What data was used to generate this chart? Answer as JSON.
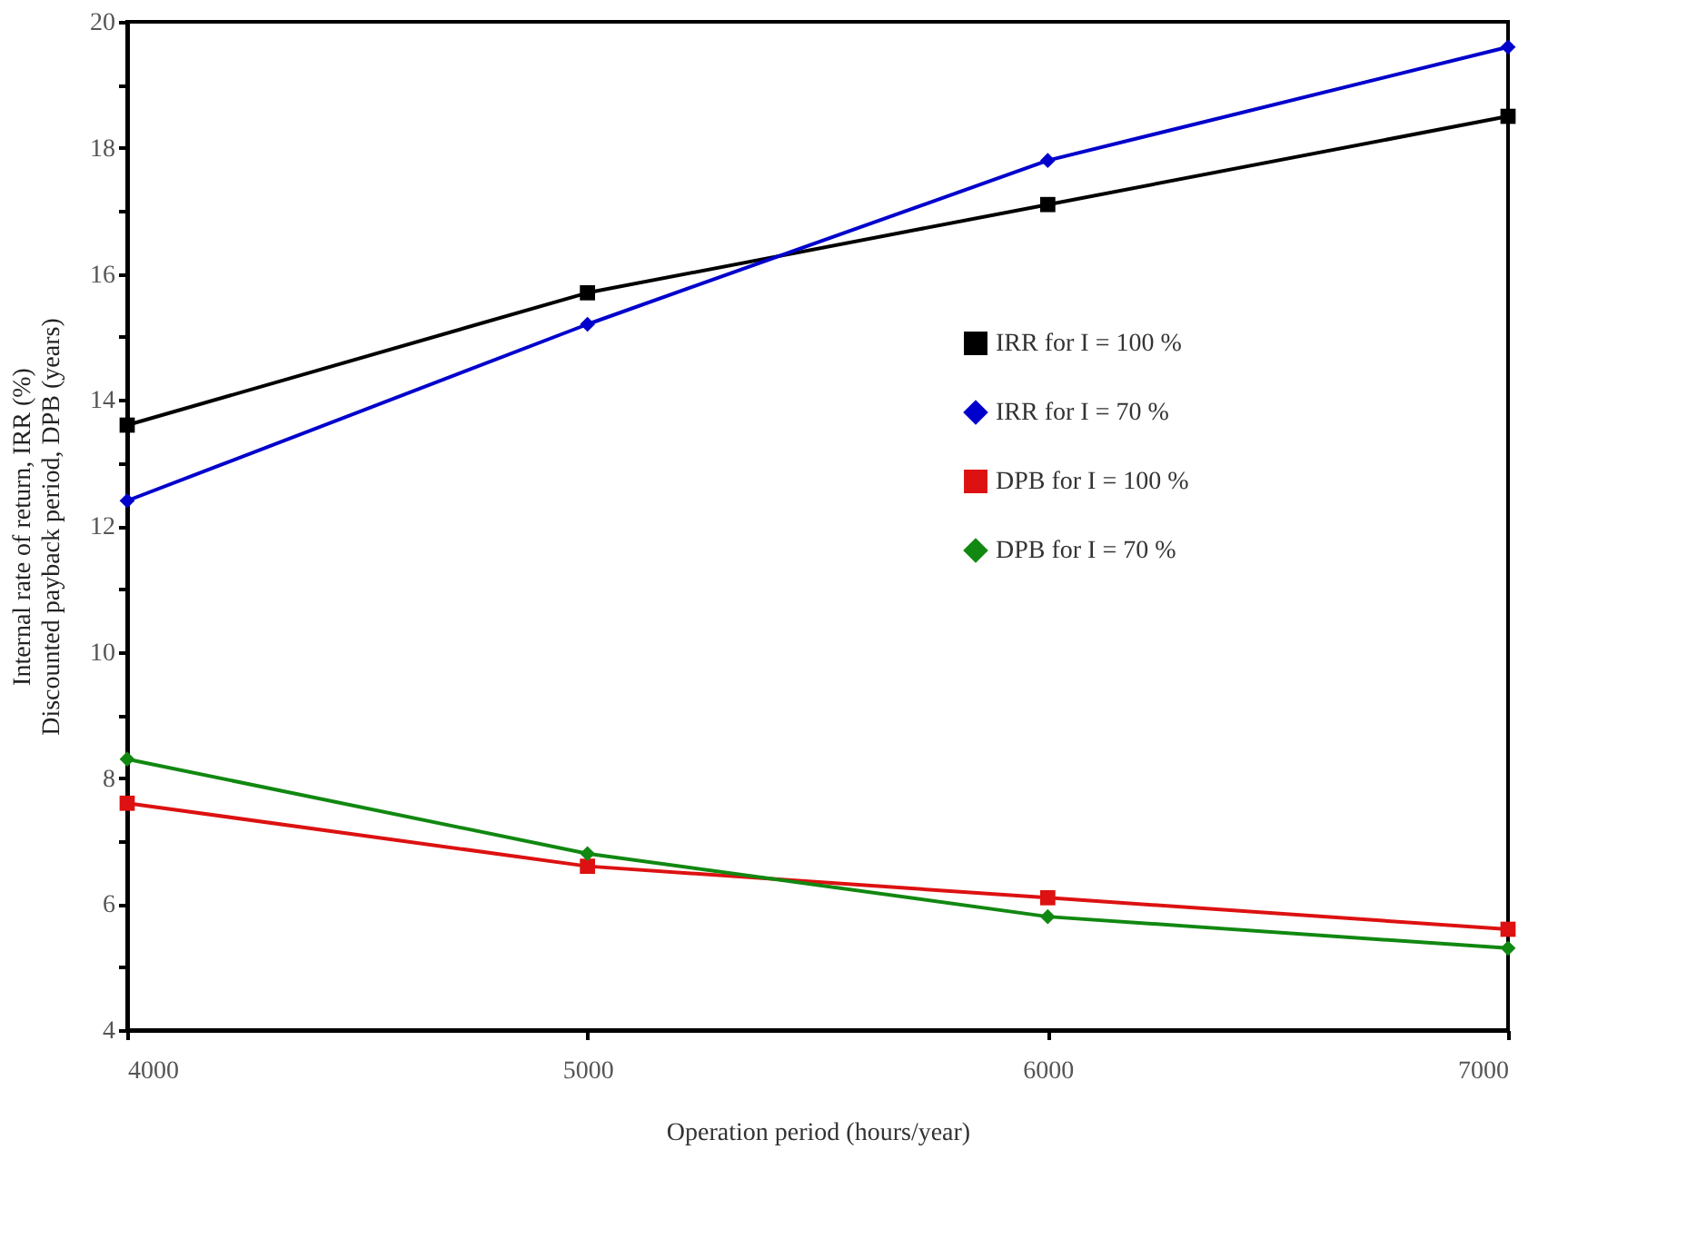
{
  "chart_data": {
    "type": "line",
    "xlabel": "Operation period (hours/year)",
    "ylabel": [
      "Internal rate of return, IRR (%)",
      "Discounted payback period, DPB (years)"
    ],
    "x": [
      4000,
      5000,
      6000,
      7000
    ],
    "series": [
      {
        "name": "IRR for I = 100 %",
        "color": "#000000",
        "marker": "square",
        "values": [
          13.6,
          15.7,
          17.1,
          18.5
        ]
      },
      {
        "name": "IRR for I =  70 %",
        "color": "#0000cc",
        "marker": "diamond",
        "values": [
          12.4,
          15.2,
          17.8,
          19.6
        ]
      },
      {
        "name": "DPB for I = 100 %",
        "color": "#dd1111",
        "marker": "square",
        "values": [
          7.6,
          6.6,
          6.1,
          5.6
        ]
      },
      {
        "name": "DPB for I =  70 %",
        "color": "#118811",
        "marker": "diamond",
        "values": [
          8.3,
          6.8,
          5.8,
          5.3
        ]
      }
    ],
    "xlim": [
      4000,
      7000
    ],
    "xticks": [
      4000,
      5000,
      6000,
      7000
    ],
    "ylim": [
      4,
      20
    ],
    "yticks": [
      4,
      {
        "value": 5,
        "label": null
      },
      6,
      {
        "value": 7,
        "label": null
      },
      8,
      {
        "value": 9,
        "label": null
      },
      10,
      {
        "value": 11,
        "label": null
      },
      12,
      {
        "value": 13,
        "label": null
      },
      14,
      {
        "value": 15,
        "label": null
      },
      16,
      {
        "value": 17,
        "label": null
      },
      18,
      {
        "value": 19,
        "label": null
      },
      20
    ],
    "grid": false,
    "legend": "right",
    "line_style": "solid"
  }
}
